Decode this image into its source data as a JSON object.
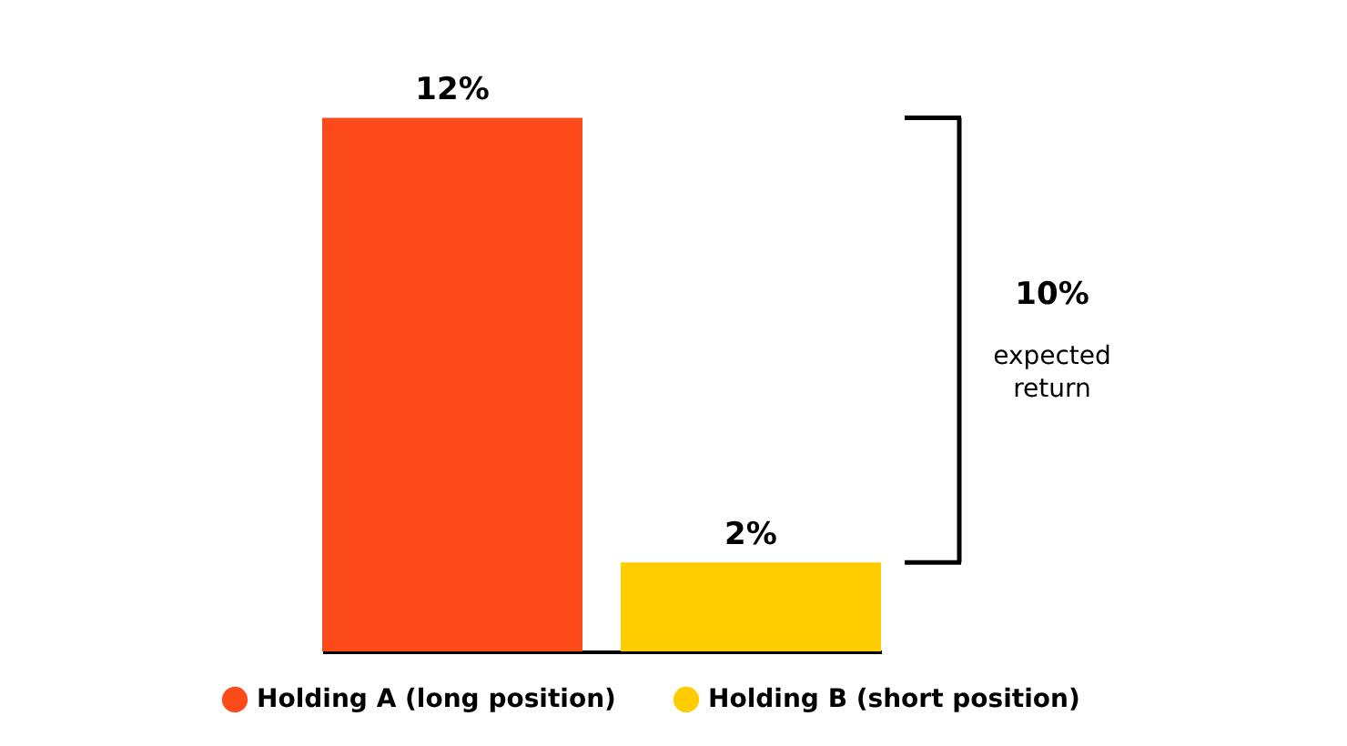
{
  "chart_data": {
    "type": "bar",
    "categories": [
      null
    ],
    "series": [
      {
        "name": "Holding A (long position)",
        "color": "#fc4a1a",
        "values": [
          12
        ],
        "value_labels": [
          "12%"
        ]
      },
      {
        "name": "Holding B (short position)",
        "color": "#ffcc00",
        "values": [
          2
        ],
        "value_labels": [
          "2%"
        ]
      }
    ],
    "annotations": [
      "10%",
      "expected return"
    ],
    "legend": "bottom",
    "tick_labels": false
  }
}
